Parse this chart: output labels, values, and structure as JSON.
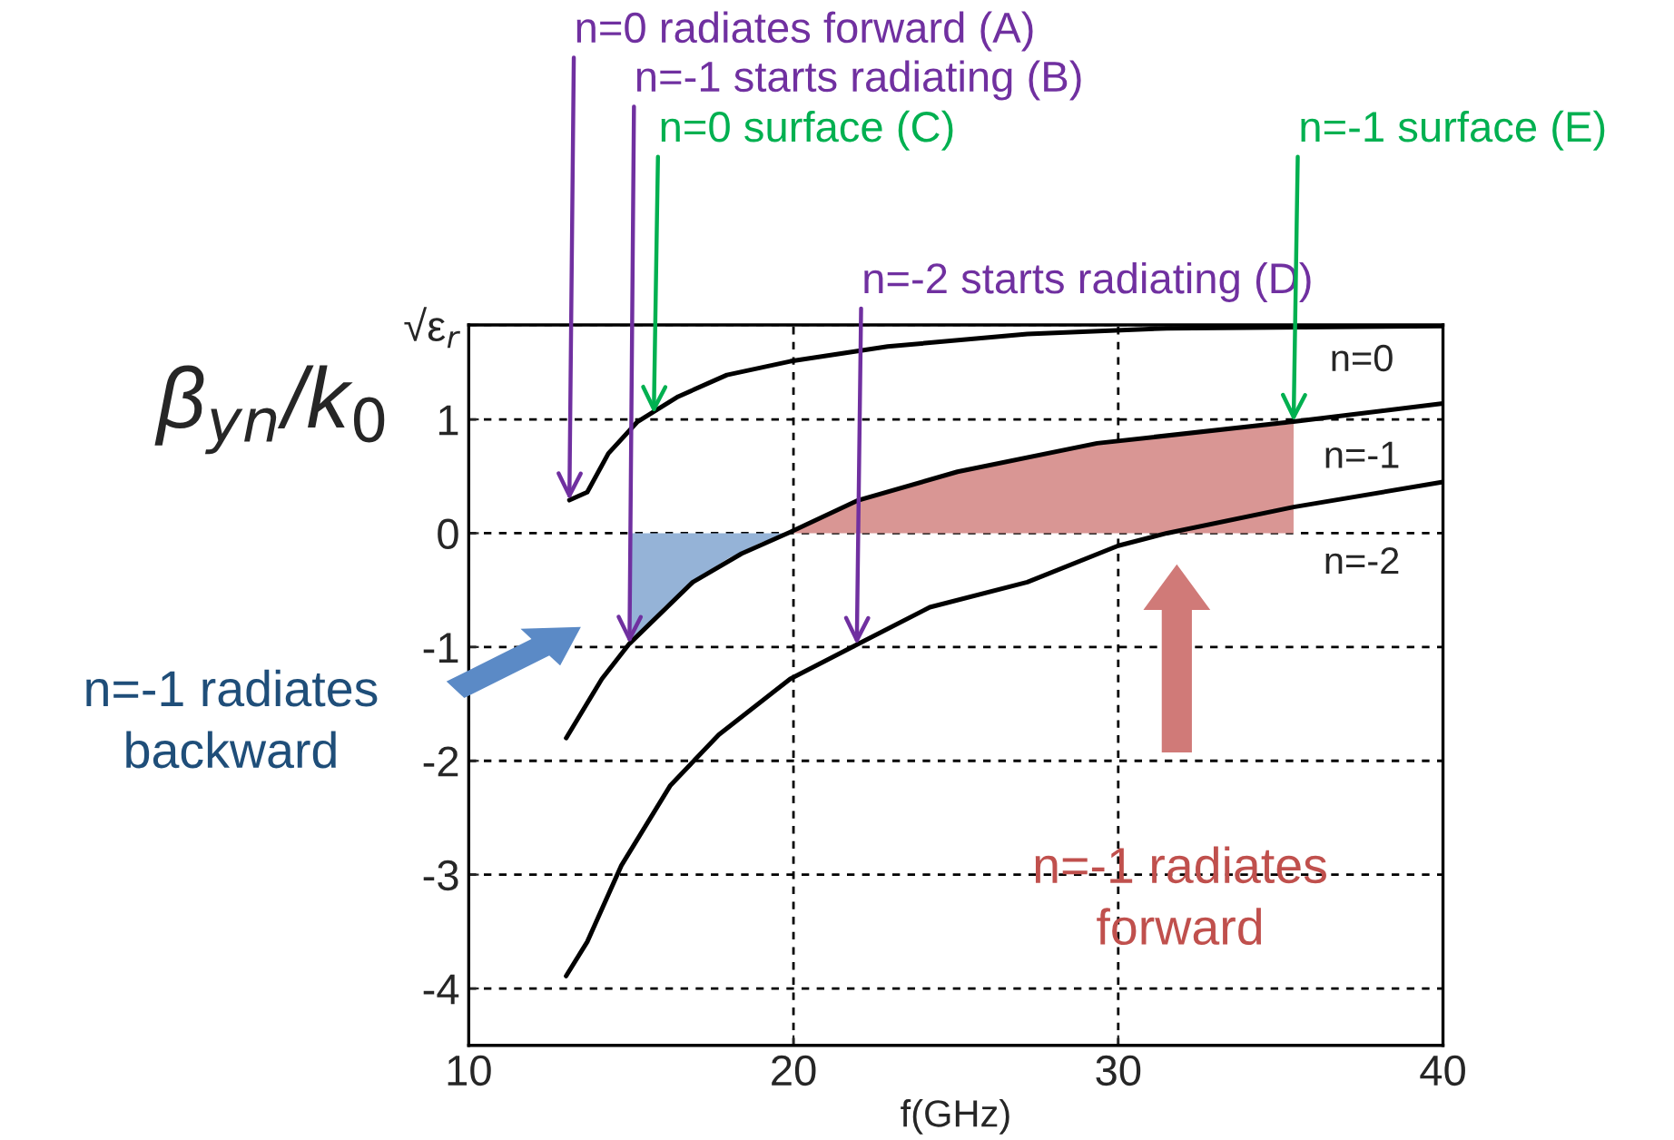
{
  "chart_data": {
    "type": "line",
    "xlabel": "f(GHz)",
    "ylabel": "β$_{yn}$/k$_{0}$",
    "xlim": [
      10,
      40
    ],
    "ylim": [
      -4.5,
      1.83
    ],
    "xticks": [
      10,
      20,
      30,
      40
    ],
    "yticks": [
      -4,
      -3,
      -2,
      -1,
      0,
      1,
      {
        "value": 1.83,
        "label": "√ε$_{r}$"
      }
    ],
    "grid": true,
    "legend": false,
    "marker": "none",
    "line_style": "solid",
    "series": [
      {
        "name": "n=0",
        "color": "#000000",
        "x": [
          13.1,
          13.65,
          14.3,
          15.2,
          16.45,
          17.95,
          19.9,
          22.9,
          27.2,
          31.5,
          40
        ],
        "values": [
          0.29,
          0.36,
          0.7,
          0.98,
          1.2,
          1.39,
          1.51,
          1.64,
          1.75,
          1.8,
          1.82
        ]
      },
      {
        "name": "n=-1",
        "color": "#000000",
        "x": [
          13.0,
          14.1,
          14.95,
          16.9,
          18.4,
          19.9,
          22.0,
          25.05,
          29.35,
          35.4,
          40
        ],
        "values": [
          -1.8,
          -1.28,
          -0.97,
          -0.43,
          -0.18,
          0.01,
          0.29,
          0.54,
          0.79,
          0.98,
          1.14
        ]
      },
      {
        "name": "n=-2",
        "color": "#000000",
        "x": [
          13.0,
          13.65,
          14.7,
          16.2,
          17.7,
          19.9,
          21.95,
          24.2,
          27.2,
          30.0,
          31.5,
          35.4,
          40
        ],
        "values": [
          -3.89,
          -3.59,
          -2.92,
          -2.22,
          -1.77,
          -1.28,
          -0.98,
          -0.65,
          -0.43,
          -0.11,
          0.0,
          0.23,
          0.45
        ]
      },
      {
        "type": "area",
        "color": "#95b3d7",
        "x": [
          15.0,
          16.0,
          17.0,
          18.0,
          19.0,
          19.9
        ],
        "values": [
          -0.96,
          -0.65,
          -0.4,
          -0.22,
          -0.08,
          0.0
        ]
      },
      {
        "type": "area",
        "color": "#d99694",
        "x": [
          20.0,
          22.0,
          25.05,
          29.35,
          35.4
        ],
        "values": [
          0.02,
          0.29,
          0.54,
          0.79,
          0.96
        ]
      }
    ],
    "annotations": [
      {
        "text": "n=0 radiates forward (A)",
        "x": 13.1,
        "y": 0.29
      },
      {
        "text": "n=-1 starts radiating (B)",
        "x": 14.95,
        "y": -0.97
      },
      {
        "text": "n=0 surface (C)",
        "x": 15.7,
        "y": 1.05
      },
      {
        "text": "n=-2 starts radiating (D)",
        "x": 21.95,
        "y": -0.98
      },
      {
        "text": "n=-1 surface (E)",
        "x": 35.4,
        "y": 0.98
      },
      "n=-1 radiates\nbackward",
      "n=-1 radiates\nforward"
    ]
  }
}
